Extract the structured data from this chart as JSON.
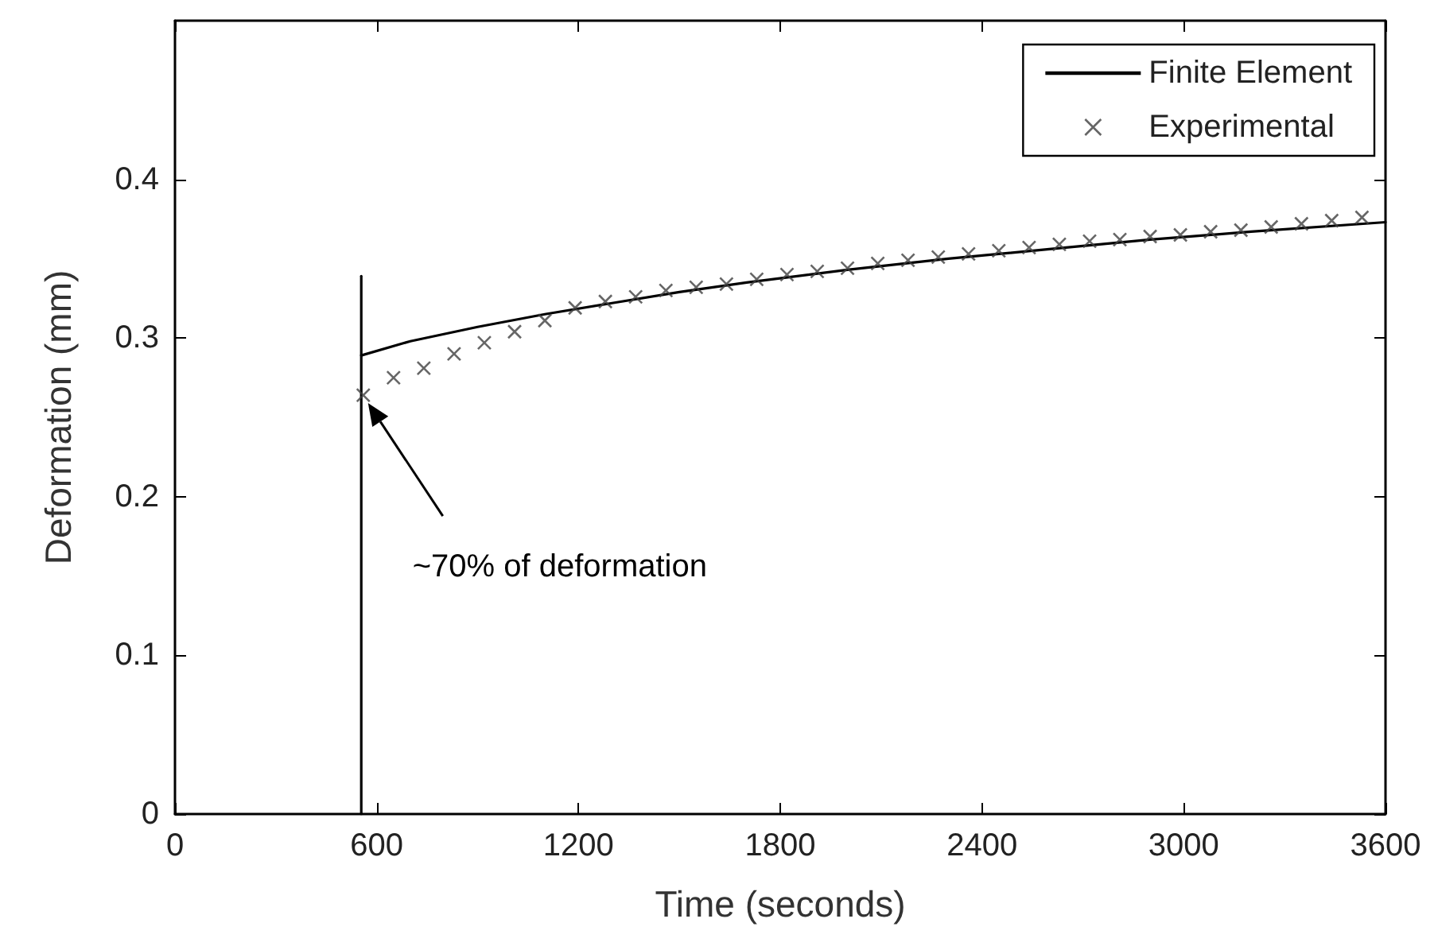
{
  "chart_data": {
    "type": "line",
    "xlabel": "Time (seconds)",
    "ylabel": "Deformation (mm)",
    "xlim": [
      0,
      3600
    ],
    "xticks": [
      0,
      600,
      1200,
      1800,
      2400,
      3000,
      3600
    ],
    "ylim": [
      0,
      0.5
    ],
    "yticks": [
      0,
      0.1,
      0.2,
      0.3,
      0.4
    ],
    "grid": false,
    "legend": "top right",
    "annotations": [
      "~70% of deformation"
    ],
    "series": [
      {
        "name": "Finite Element",
        "color": "#000000",
        "marker": "none",
        "line_style": "solid",
        "x": [
          554,
          700,
          900,
          1100,
          1300,
          1500,
          1700,
          2000,
          2300,
          2600,
          2900,
          3200,
          3600
        ],
        "values": [
          0.289,
          0.298,
          0.307,
          0.315,
          0.322,
          0.329,
          0.335,
          0.343,
          0.35,
          0.356,
          0.362,
          0.367,
          0.373
        ]
      },
      {
        "name": "Experimental",
        "type": "scatter",
        "color": "#404040",
        "marker": "cross",
        "x": [
          560,
          650,
          740,
          830,
          920,
          1010,
          1100,
          1190,
          1280,
          1370,
          1460,
          1550,
          1640,
          1730,
          1820,
          1910,
          2000,
          2090,
          2180,
          2270,
          2360,
          2450,
          2540,
          2630,
          2720,
          2810,
          2900,
          2990,
          3080,
          3170,
          3260,
          3350,
          3440,
          3530
        ],
        "values": [
          0.264,
          0.275,
          0.281,
          0.29,
          0.297,
          0.304,
          0.311,
          0.319,
          0.323,
          0.326,
          0.33,
          0.332,
          0.334,
          0.337,
          0.34,
          0.342,
          0.344,
          0.347,
          0.349,
          0.351,
          0.353,
          0.355,
          0.357,
          0.359,
          0.361,
          0.362,
          0.364,
          0.365,
          0.367,
          0.368,
          0.37,
          0.372,
          0.374,
          0.376
        ]
      },
      {
        "color": "#000000",
        "marker": "none",
        "line_style": "solid",
        "x": [
          554,
          554
        ],
        "values": [
          0,
          0.339
        ]
      }
    ]
  }
}
